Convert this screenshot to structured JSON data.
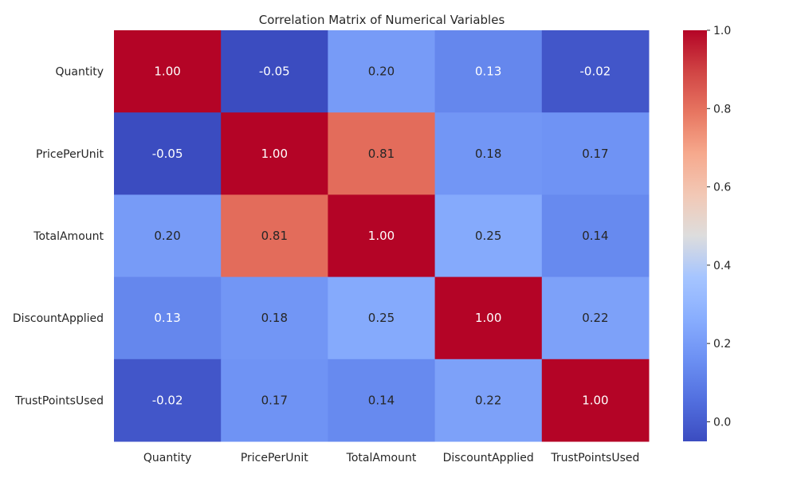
{
  "chart_data": {
    "type": "heatmap",
    "title": "Correlation Matrix of Numerical Variables",
    "xlabel": "",
    "ylabel": "",
    "x_labels": [
      "Quantity",
      "PricePerUnit",
      "TotalAmount",
      "DiscountApplied",
      "TrustPointsUsed"
    ],
    "y_labels": [
      "Quantity",
      "PricePerUnit",
      "TotalAmount",
      "DiscountApplied",
      "TrustPointsUsed"
    ],
    "values": [
      [
        1.0,
        -0.05,
        0.2,
        0.13,
        -0.02
      ],
      [
        -0.05,
        1.0,
        0.81,
        0.18,
        0.17
      ],
      [
        0.2,
        0.81,
        1.0,
        0.25,
        0.14
      ],
      [
        0.13,
        0.18,
        0.25,
        1.0,
        0.22
      ],
      [
        -0.02,
        0.17,
        0.14,
        0.22,
        1.0
      ]
    ],
    "cell_labels": [
      [
        "1.00",
        "-0.05",
        "0.20",
        "0.13",
        "-0.02"
      ],
      [
        "-0.05",
        "1.00",
        "0.81",
        "0.18",
        "0.17"
      ],
      [
        "0.20",
        "0.81",
        "1.00",
        "0.25",
        "0.14"
      ],
      [
        "0.13",
        "0.18",
        "0.25",
        "1.00",
        "0.22"
      ],
      [
        "-0.02",
        "0.17",
        "0.14",
        "0.22",
        "1.00"
      ]
    ],
    "colormap": "coolwarm",
    "vmin": -0.05,
    "vmax": 1.0,
    "colorbar_ticks": [
      0.0,
      0.2,
      0.4,
      0.6,
      0.8,
      1.0
    ],
    "colorbar_tick_labels": [
      "0.0",
      "0.2",
      "0.4",
      "0.6",
      "0.8",
      "1.0"
    ],
    "legend": "colorbar-right",
    "grid": false
  }
}
